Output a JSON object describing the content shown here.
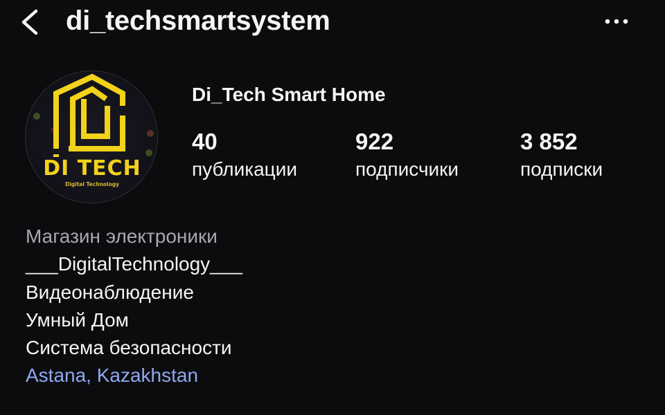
{
  "header": {
    "title": "di_techsmartsystem",
    "back_icon": "chevron-left-icon",
    "more_icon": "more-horizontal-icon"
  },
  "profile": {
    "avatar_logo_text": "DI TECH",
    "avatar_logo_subtext": "Digital Technology",
    "name": "Di_Tech Smart Home",
    "stats": [
      {
        "value": "40",
        "label": "публикации"
      },
      {
        "value": "922",
        "label": "подписчики"
      },
      {
        "value": "3 852",
        "label": "подписки"
      }
    ]
  },
  "bio": {
    "category": "Магазин электроники",
    "lines": [
      "___DigitalTechnology___",
      "Видеонаблюдение",
      "Умный Дом",
      "Система безопасности"
    ],
    "location": "Astana, Kazakhstan"
  },
  "colors": {
    "background": "#0c0c0e",
    "logo_yellow": "#f2d21a",
    "link": "#8fa9f0",
    "category": "#a8a8ae"
  }
}
